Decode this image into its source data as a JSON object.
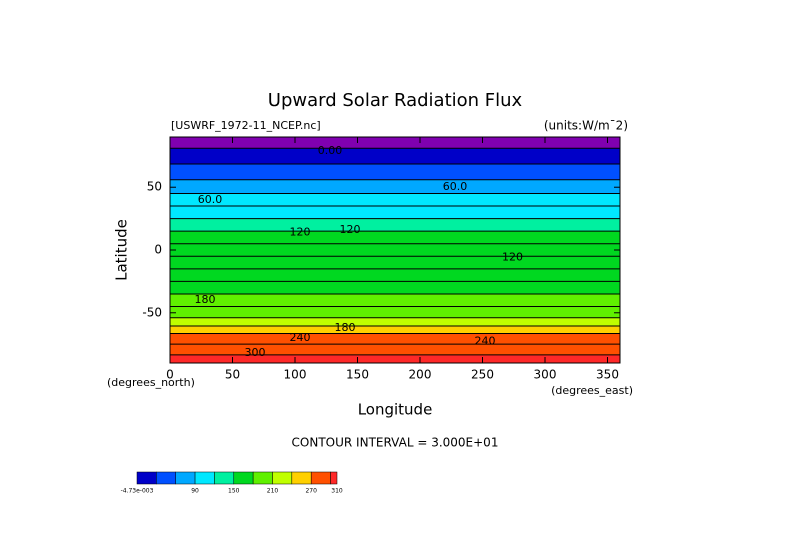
{
  "chart_data": {
    "type": "contour",
    "title": "Upward Solar Radiation Flux",
    "subtitle": "[USWRF_1972-11_NCEP.nc]",
    "units": "(units:W/m¯2)",
    "x_label": "Longitude",
    "y_label": "Latitude",
    "x_unit": "(degrees_east)",
    "y_unit": "(degrees_north)",
    "note": "CONTOUR INTERVAL = 3.000E+01",
    "xlim": [
      0,
      360
    ],
    "xticks": [
      0,
      50,
      100,
      150,
      200,
      250,
      300,
      350
    ],
    "ylim": [
      -90,
      90
    ],
    "yticks": [
      -50,
      0,
      50
    ],
    "lat": [
      87,
      75,
      62,
      50,
      40,
      30,
      20,
      10,
      0,
      -10,
      -20,
      -30,
      -40,
      -50,
      -58,
      -63,
      -70,
      -80,
      -87
    ],
    "values": [
      -0.01,
      20,
      40,
      70,
      90,
      110,
      140,
      150,
      150,
      160,
      165,
      170,
      185,
      200,
      225,
      250,
      280,
      290,
      305
    ],
    "below_color": "#8000b0",
    "colorbar": {
      "levels": [
        -0.00473,
        30,
        60,
        90,
        120,
        150,
        180,
        210,
        240,
        270,
        300,
        310
      ],
      "colors": [
        "#0000c8",
        "#0050ff",
        "#00a8ff",
        "#00e8ff",
        "#00f0a0",
        "#00d820",
        "#60f000",
        "#c0ff00",
        "#ffd000",
        "#ff5000",
        "#ff2828"
      ],
      "ticks": [
        {
          "value": -0.00473,
          "label": "-4.73e-003"
        },
        90,
        150,
        210,
        270,
        310
      ]
    },
    "contour_labels": [
      {
        "text": "0.00",
        "lon": 128,
        "lat": 79
      },
      {
        "text": "60.0",
        "lon": 32,
        "lat": 40
      },
      {
        "text": "60.0",
        "lon": 228,
        "lat": 50
      },
      {
        "text": "120",
        "lon": 104,
        "lat": 14
      },
      {
        "text": "120",
        "lon": 144,
        "lat": 16
      },
      {
        "text": "120",
        "lon": 274,
        "lat": -6
      },
      {
        "text": "180",
        "lon": 28,
        "lat": -40
      },
      {
        "text": "180",
        "lon": 140,
        "lat": -62
      },
      {
        "text": "240",
        "lon": 104,
        "lat": -70
      },
      {
        "text": "240",
        "lon": 252,
        "lat": -73
      },
      {
        "text": "300",
        "lon": 68,
        "lat": -82
      }
    ]
  }
}
